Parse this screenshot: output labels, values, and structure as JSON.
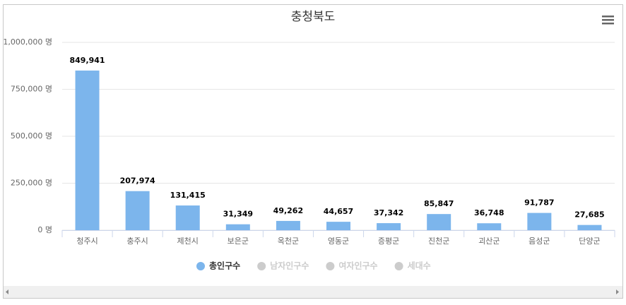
{
  "chart_data": {
    "type": "bar",
    "title": "충청북도",
    "categories": [
      "청주시",
      "충주시",
      "제천시",
      "보은군",
      "옥천군",
      "영동군",
      "증평군",
      "진천군",
      "괴산군",
      "음성군",
      "단양군"
    ],
    "series": [
      {
        "name": "총인구수",
        "color": "#7cb5ec",
        "values": [
          849941,
          207974,
          131415,
          31349,
          49262,
          44657,
          37342,
          85847,
          36748,
          91787,
          27685
        ],
        "value_labels": [
          "849,941",
          "207,974",
          "131,415",
          "31,349",
          "49,262",
          "44,657",
          "37,342",
          "85,847",
          "36,748",
          "91,787",
          "27,685"
        ]
      }
    ],
    "hidden_series": [
      "남자인구수",
      "여자인구수",
      "세대수"
    ],
    "hidden_color": "#cccccc",
    "ylim": [
      0,
      1000000
    ],
    "yticks": [
      {
        "value": 0,
        "label": "0 명"
      },
      {
        "value": 250000,
        "label": "250,000 명"
      },
      {
        "value": 500000,
        "label": "500,000 명"
      },
      {
        "value": 750000,
        "label": "750,000 명"
      },
      {
        "value": 1000000,
        "label": "1,000,000 명"
      }
    ],
    "grid": true
  }
}
